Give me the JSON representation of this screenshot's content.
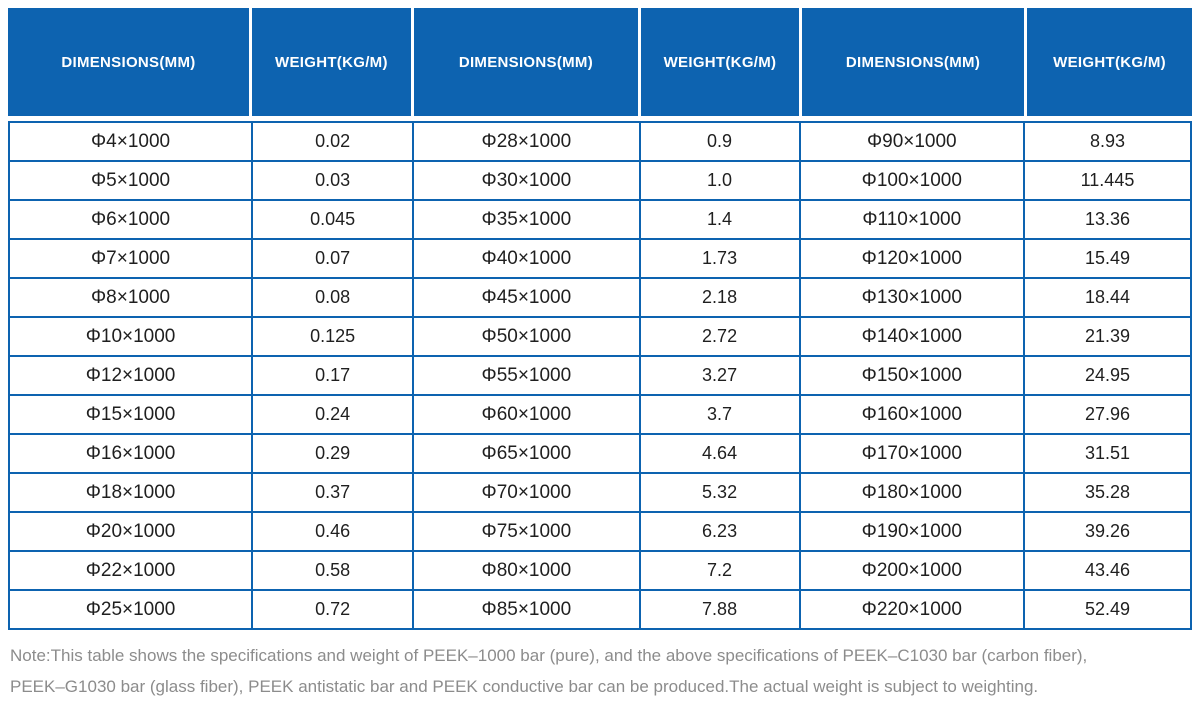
{
  "colors": {
    "header_bg": "#0d63b0",
    "grid_border": "#0d63b0",
    "header_text": "#ffffff",
    "cell_text": "#1f1f1f",
    "note_text": "#8c8c8c"
  },
  "table": {
    "headers": [
      "DIMENSIONS(MM)",
      "WEIGHT(KG/M)",
      "DIMENSIONS(MM)",
      "WEIGHT(KG/M)",
      "DIMENSIONS(MM)",
      "WEIGHT(KG/M)"
    ],
    "rows": [
      [
        "Φ4×1000",
        "0.02",
        "Φ28×1000",
        "0.9",
        "Φ90×1000",
        "8.93"
      ],
      [
        "Φ5×1000",
        "0.03",
        "Φ30×1000",
        "1.0",
        "Φ100×1000",
        "11.445"
      ],
      [
        "Φ6×1000",
        "0.045",
        "Φ35×1000",
        "1.4",
        "Φ110×1000",
        "13.36"
      ],
      [
        "Φ7×1000",
        "0.07",
        "Φ40×1000",
        "1.73",
        "Φ120×1000",
        "15.49"
      ],
      [
        "Φ8×1000",
        "0.08",
        "Φ45×1000",
        "2.18",
        "Φ130×1000",
        "18.44"
      ],
      [
        "Φ10×1000",
        "0.125",
        "Φ50×1000",
        "2.72",
        "Φ140×1000",
        "21.39"
      ],
      [
        "Φ12×1000",
        "0.17",
        "Φ55×1000",
        "3.27",
        "Φ150×1000",
        "24.95"
      ],
      [
        "Φ15×1000",
        "0.24",
        "Φ60×1000",
        "3.7",
        "Φ160×1000",
        "27.96"
      ],
      [
        "Φ16×1000",
        "0.29",
        "Φ65×1000",
        "4.64",
        "Φ170×1000",
        "31.51"
      ],
      [
        "Φ18×1000",
        "0.37",
        "Φ70×1000",
        "5.32",
        "Φ180×1000",
        "35.28"
      ],
      [
        "Φ20×1000",
        "0.46",
        "Φ75×1000",
        "6.23",
        "Φ190×1000",
        "39.26"
      ],
      [
        "Φ22×1000",
        "0.58",
        "Φ80×1000",
        "7.2",
        "Φ200×1000",
        "43.46"
      ],
      [
        "Φ25×1000",
        "0.72",
        "Φ85×1000",
        "7.88",
        "Φ220×1000",
        "52.49"
      ]
    ]
  },
  "note": {
    "line1": "Note:This table shows the specifications and weight of PEEK–1000 bar (pure), and the above specifications of PEEK–C1030 bar (carbon fiber),",
    "line2": "PEEK–G1030 bar (glass fiber), PEEK antistatic bar and PEEK conductive bar can be produced.The actual weight is subject to weighting."
  }
}
